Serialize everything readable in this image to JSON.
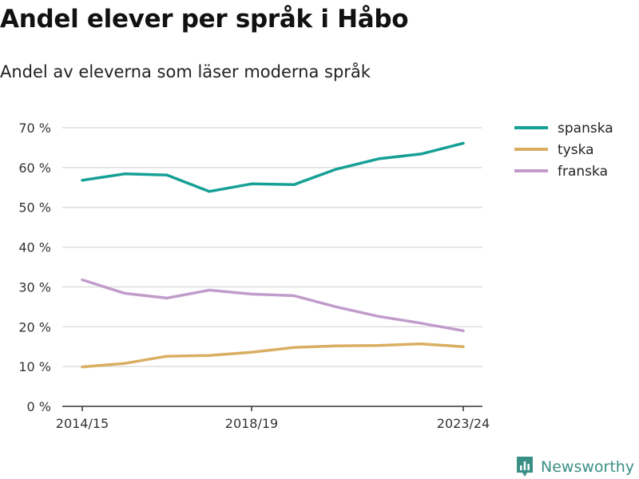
{
  "title": "Andel elever per språk i Håbo",
  "subtitle": "Andel av eleverna som läser moderna språk",
  "brand": "Newsworthy",
  "chart_data": {
    "type": "line",
    "x": [
      "2014/15",
      "2015/16",
      "2016/17",
      "2017/18",
      "2018/19",
      "2019/20",
      "2020/21",
      "2021/22",
      "2022/23",
      "2023/24"
    ],
    "x_tick_labels": [
      "2014/15",
      "2018/19",
      "2023/24"
    ],
    "y_tick_labels": [
      "0 %",
      "10 %",
      "20 %",
      "30 %",
      "40 %",
      "50 %",
      "60 %",
      "70 %"
    ],
    "ylim": [
      0,
      70
    ],
    "grid": true,
    "legend_placement": "top-right",
    "series": [
      {
        "name": "spanska",
        "color": "#16a095",
        "values": [
          56.8,
          58.4,
          58.1,
          54.0,
          55.9,
          55.7,
          59.6,
          62.2,
          63.4,
          66.1
        ]
      },
      {
        "name": "tyska",
        "color": "#d9ae62",
        "values": [
          9.9,
          10.8,
          12.6,
          12.8,
          13.6,
          14.8,
          15.2,
          15.3,
          15.7,
          15.0
        ]
      },
      {
        "name": "franska",
        "color": "#c19ccb",
        "values": [
          31.8,
          28.4,
          27.2,
          29.2,
          28.2,
          27.8,
          25.0,
          22.6,
          20.9,
          19.0
        ]
      }
    ]
  }
}
